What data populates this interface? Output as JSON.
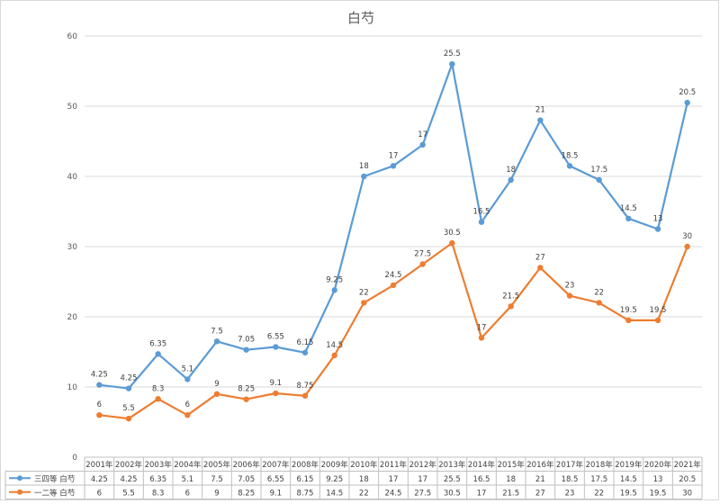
{
  "chart_data": {
    "type": "line",
    "title": "白芍",
    "xlabel": "",
    "ylabel": "",
    "ylim": [
      0,
      60
    ],
    "yticks": [
      0,
      10,
      20,
      30,
      40,
      50,
      60
    ],
    "grid": true,
    "legend": "data-table-left",
    "categories": [
      "2001年",
      "2002年",
      "2003年",
      "2004年",
      "2005年",
      "2006年",
      "2007年",
      "2008年",
      "2009年",
      "2010年",
      "2011年",
      "2012年",
      "2013年",
      "2014年",
      "2015年",
      "2016年",
      "2017年",
      "2018年",
      "2019年",
      "2020年",
      "2021年"
    ],
    "series": [
      {
        "name": "三四等 白芍",
        "color": "#5b9bd5",
        "values": [
          10.3,
          9.8,
          14.7,
          11.1,
          16.5,
          15.3,
          15.7,
          14.9,
          23.8,
          40.0,
          41.5,
          44.5,
          56.0,
          33.5,
          39.5,
          48.0,
          41.5,
          39.5,
          34.0,
          32.5,
          50.5
        ],
        "labels": [
          "4.25",
          "4.25",
          "6.35",
          "5.1",
          "7.5",
          "7.05",
          "6.55",
          "6.15",
          "9.25",
          "18",
          "17",
          "17",
          "25.5",
          "16.5",
          "18",
          "21",
          "18.5",
          "17.5",
          "14.5",
          "13",
          "20.5"
        ]
      },
      {
        "name": "一二等 白芍",
        "color": "#ed7d31",
        "values": [
          6,
          5.5,
          8.3,
          6,
          9,
          8.25,
          9.1,
          8.75,
          14.5,
          22,
          24.5,
          27.5,
          30.5,
          17,
          21.5,
          27,
          23,
          22,
          19.5,
          19.5,
          30
        ],
        "labels": [
          "6",
          "5.5",
          "8.3",
          "6",
          "9",
          "8.25",
          "9.1",
          "8.75",
          "14.5",
          "22",
          "24.5",
          "27.5",
          "30.5",
          "17",
          "21.5",
          "27",
          "23",
          "22",
          "19.5",
          "19.5",
          "30"
        ]
      }
    ]
  }
}
